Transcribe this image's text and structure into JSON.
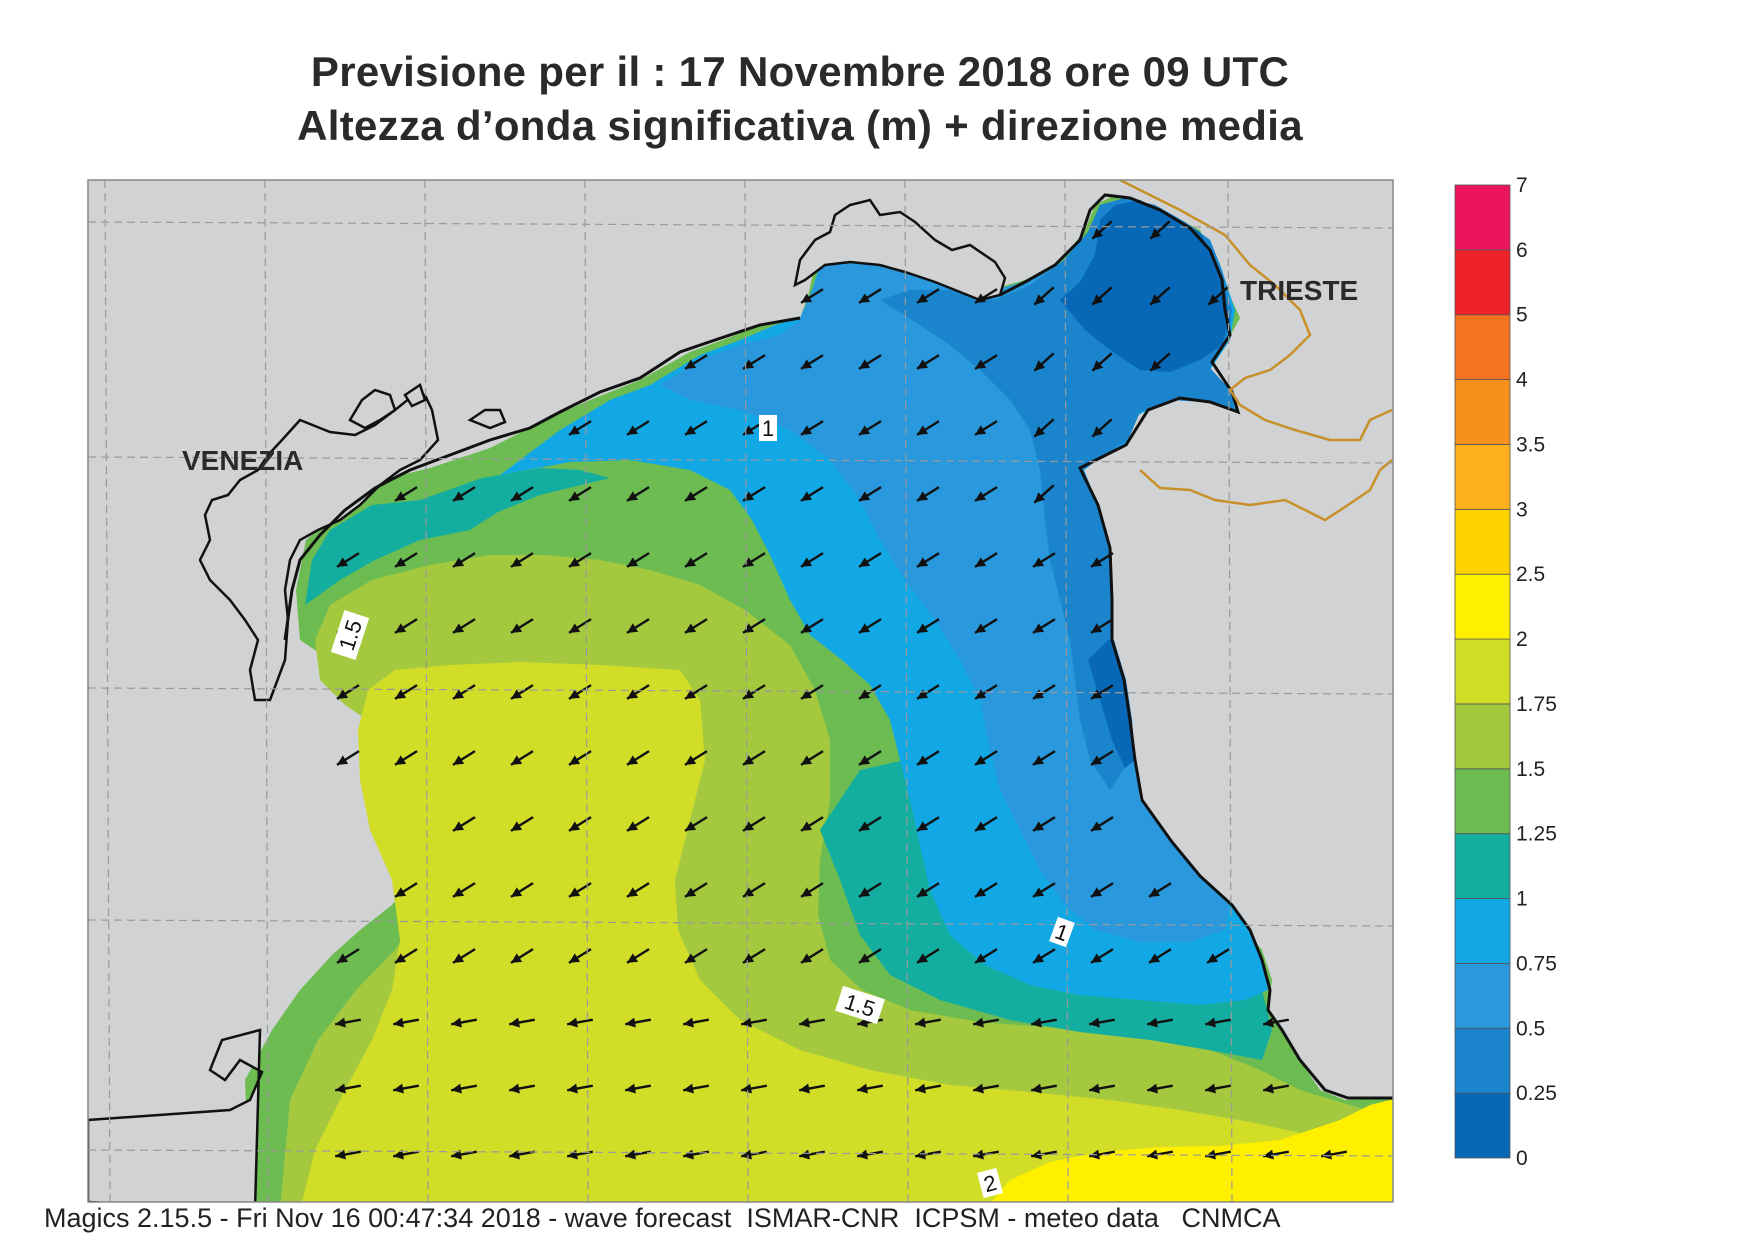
{
  "title": {
    "line1": "Previsione per il  :  17 Novembre  2018   ore 09 UTC",
    "line2": "Altezza d’onda significativa (m) + direzione media"
  },
  "footer": "Magics 2.15.5 - Fri Nov 16 00:47:34 2018 - wave forecast  ISMAR-CNR  ICPSM - meteo data   CNMCA",
  "cities": [
    "VENEZIA",
    "TRIESTE"
  ],
  "isoline_labels": [
    "1",
    "1.5",
    "1.5",
    "1",
    "2"
  ],
  "legend": {
    "ticks": [
      "0",
      "0.25",
      "0.5",
      "0.75",
      "1",
      "1.25",
      "1.5",
      "1.75",
      "2",
      "2.5",
      "3",
      "3.5",
      "4",
      "5",
      "6",
      "7"
    ],
    "colors": [
      "#0868b8",
      "#1a84cc",
      "#2a98dc",
      "#12a8e6",
      "#14aea0",
      "#6cbc52",
      "#a5c93e",
      "#d2dd28",
      "#fff000",
      "#fed200",
      "#fdb01c",
      "#f8901e",
      "#f47222",
      "#ee2228",
      "#ec145a"
    ]
  },
  "wave_direction": "ENE → WSW (toward south-west)",
  "colors": {
    "land": "#d1d2d4",
    "frame": "#888888",
    "border": "#c8902a"
  }
}
